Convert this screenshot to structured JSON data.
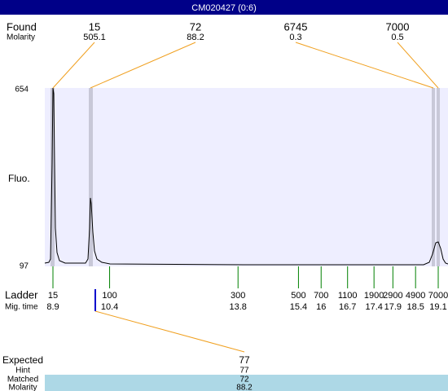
{
  "title": "CM020427 (0:6)",
  "found": {
    "label": "Found",
    "molarity_label": "Molarity",
    "peaks": [
      {
        "size": 15,
        "molarity": 505.1
      },
      {
        "size": 72,
        "molarity": 88.2
      },
      {
        "size": 6745,
        "molarity": 0.3
      },
      {
        "size": 7000,
        "molarity": 0.5
      }
    ]
  },
  "y_axis": {
    "label": "Fluo.",
    "top": 654,
    "bottom": 97
  },
  "ladder": {
    "label": "Ladder",
    "time_label": "Mig. time",
    "items": [
      {
        "size": 15,
        "time": 8.9
      },
      {
        "size": 100,
        "time": 10.4
      },
      {
        "size": 300,
        "time": 13.8
      },
      {
        "size": 500,
        "time": 15.4
      },
      {
        "size": 700,
        "time": 16
      },
      {
        "size": 1100,
        "time": 16.7
      },
      {
        "size": 1900,
        "time": 17.4
      },
      {
        "size": 2900,
        "time": 17.9
      },
      {
        "size": 4900,
        "time": 18.5
      },
      {
        "size": 7000,
        "time": 19.1
      }
    ]
  },
  "expected": {
    "label": "Expected",
    "value": 77,
    "hint_label": "Hint",
    "hint": 77,
    "matched_label": "Matched",
    "matched": 72,
    "molarity_label": "Molarity",
    "molarity": 88.2
  }
}
